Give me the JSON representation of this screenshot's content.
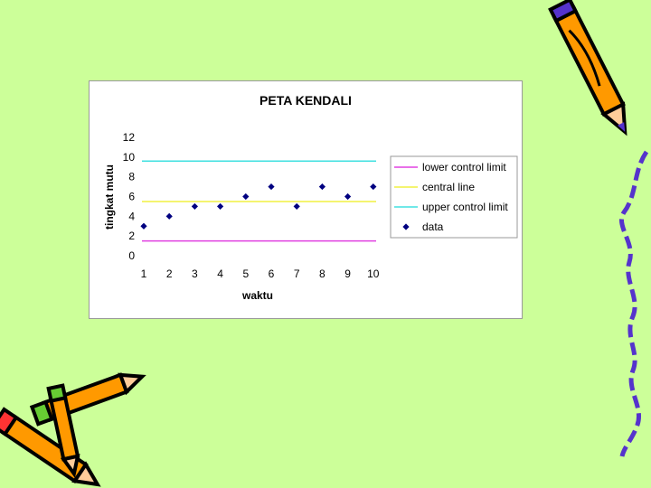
{
  "chart_data": {
    "type": "scatter",
    "title": "PETA KENDALI",
    "xlabel": "waktu",
    "ylabel": "tingkat mutu",
    "x": [
      1,
      2,
      3,
      4,
      5,
      6,
      7,
      8,
      9,
      10
    ],
    "xticks": [
      "1",
      "2",
      "3",
      "4",
      "5",
      "6",
      "7",
      "8",
      "9",
      "10"
    ],
    "ylim": [
      0,
      12
    ],
    "yticks": [
      "0",
      "2",
      "4",
      "6",
      "8",
      "10",
      "12"
    ],
    "grid": false,
    "legend_position": "right",
    "series": [
      {
        "name": "lower control limit",
        "kind": "line",
        "color": "#e040e0",
        "value": 1.5
      },
      {
        "name": "central line",
        "kind": "line",
        "color": "#f0f040",
        "value": 5.5
      },
      {
        "name": "upper control limit",
        "kind": "line",
        "color": "#40e0e0",
        "value": 9.6
      },
      {
        "name": "data",
        "kind": "marker",
        "color": "#000080",
        "values": [
          3,
          4,
          5,
          5,
          6,
          7,
          5,
          7,
          6,
          7
        ]
      }
    ]
  },
  "colors": {
    "background": "#ccff99",
    "pencil_body": "#ff9900",
    "pencil_accent": "#ff3333",
    "pencil_eraser": "#66cc33",
    "squiggle": "#5533cc"
  }
}
